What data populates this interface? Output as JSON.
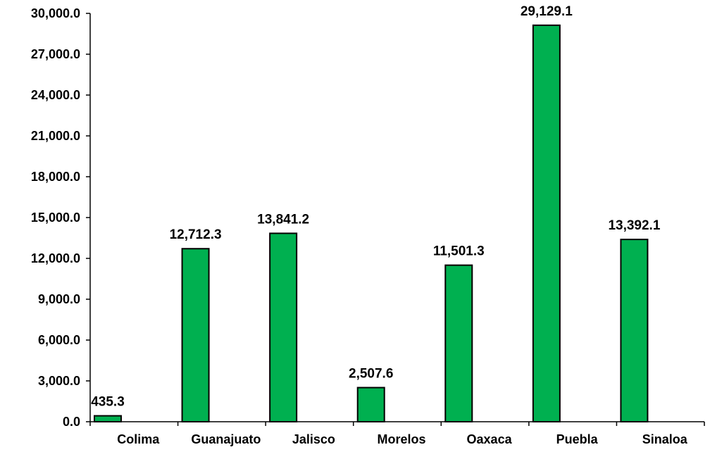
{
  "chart_data": {
    "type": "bar",
    "title": "",
    "xlabel": "",
    "ylabel": "",
    "categories": [
      "Colima",
      "Guanajuato",
      "Jalisco",
      "Morelos",
      "Oaxaca",
      "Puebla",
      "Sinaloa"
    ],
    "values": [
      435.3,
      12712.3,
      13841.2,
      2507.6,
      11501.3,
      29129.1,
      13392.1
    ],
    "value_labels": [
      "435.3",
      "12,712.3",
      "13,841.2",
      "2,507.6",
      "11,501.3",
      "29,129.1",
      "13,392.1"
    ],
    "ylim": [
      0,
      30000
    ],
    "yticks": [
      0,
      3000,
      6000,
      9000,
      12000,
      15000,
      18000,
      21000,
      24000,
      27000,
      30000
    ],
    "ytick_labels": [
      "0.0",
      "3,000.0",
      "6,000.0",
      "9,000.0",
      "12,000.0",
      "15,000.0",
      "18,000.0",
      "21,000.0",
      "24,000.0",
      "27,000.0",
      "30,000.0"
    ],
    "bar_color": "#00b050",
    "bar_edge_color": "#000000",
    "grid": false,
    "legend": "none"
  }
}
